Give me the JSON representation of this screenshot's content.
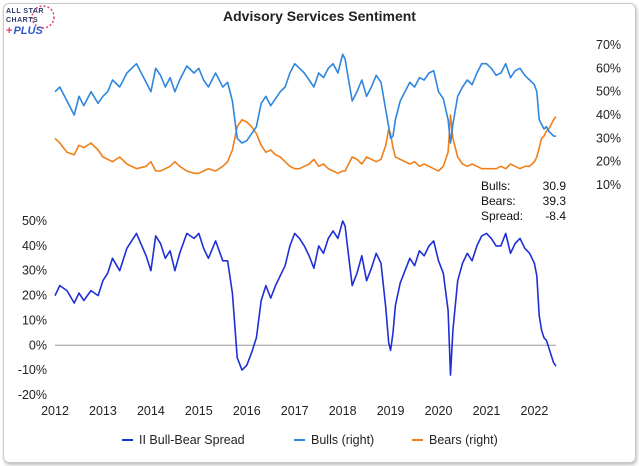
{
  "logo": {
    "line1": "ALL STAR",
    "line2": "CHARTS",
    "line3": "PLUS",
    "plus_glyph": "+"
  },
  "chart_data": {
    "type": "line",
    "title": "Advisory Services Sentiment",
    "x_ticks": [
      "2012",
      "2013",
      "2014",
      "2015",
      "2016",
      "2017",
      "2018",
      "2019",
      "2020",
      "2021",
      "2022"
    ],
    "x_range": [
      2012.0,
      2022.45
    ],
    "top_panel": {
      "axis_side": "right",
      "ylim": [
        10,
        70
      ],
      "y_ticks": [
        "70%",
        "60%",
        "50%",
        "40%",
        "30%",
        "20%",
        "10%"
      ],
      "y_tick_values": [
        70,
        60,
        50,
        40,
        30,
        20,
        10
      ],
      "series": [
        {
          "name": "Bulls (right)",
          "color": "#2e86de",
          "x": [
            2012.0,
            2012.1,
            2012.25,
            2012.4,
            2012.5,
            2012.6,
            2012.75,
            2012.9,
            2013.0,
            2013.1,
            2013.2,
            2013.35,
            2013.5,
            2013.7,
            2013.9,
            2014.0,
            2014.1,
            2014.2,
            2014.3,
            2014.4,
            2014.5,
            2014.6,
            2014.75,
            2014.9,
            2015.0,
            2015.1,
            2015.2,
            2015.35,
            2015.5,
            2015.6,
            2015.7,
            2015.75,
            2015.8,
            2015.9,
            2016.0,
            2016.1,
            2016.2,
            2016.3,
            2016.4,
            2016.5,
            2016.6,
            2016.7,
            2016.8,
            2016.9,
            2017.0,
            2017.1,
            2017.2,
            2017.3,
            2017.4,
            2017.5,
            2017.6,
            2017.7,
            2017.8,
            2017.9,
            2018.0,
            2018.05,
            2018.1,
            2018.2,
            2018.3,
            2018.4,
            2018.5,
            2018.6,
            2018.7,
            2018.8,
            2018.9,
            2018.96,
            2019.0,
            2019.05,
            2019.1,
            2019.2,
            2019.3,
            2019.4,
            2019.5,
            2019.6,
            2019.7,
            2019.8,
            2019.9,
            2020.0,
            2020.1,
            2020.2,
            2020.25,
            2020.3,
            2020.4,
            2020.5,
            2020.6,
            2020.7,
            2020.8,
            2020.9,
            2021.0,
            2021.1,
            2021.2,
            2021.3,
            2021.4,
            2021.5,
            2021.6,
            2021.7,
            2021.8,
            2021.9,
            2022.0,
            2022.05,
            2022.1,
            2022.15,
            2022.2,
            2022.25,
            2022.3,
            2022.35,
            2022.4,
            2022.45
          ],
          "y": [
            50,
            52,
            46,
            40,
            48,
            44,
            50,
            45,
            48,
            50,
            55,
            52,
            58,
            62,
            54,
            50,
            60,
            57,
            52,
            56,
            50,
            55,
            61,
            58,
            60,
            55,
            52,
            58,
            52,
            54,
            46,
            38,
            30,
            28,
            29,
            32,
            35,
            45,
            48,
            44,
            47,
            50,
            52,
            58,
            62,
            60,
            58,
            55,
            52,
            58,
            56,
            60,
            62,
            58,
            66,
            64,
            58,
            46,
            50,
            55,
            48,
            52,
            57,
            54,
            42,
            35,
            30,
            31,
            38,
            46,
            50,
            54,
            52,
            56,
            55,
            58,
            59,
            50,
            47,
            38,
            28,
            36,
            48,
            52,
            55,
            53,
            58,
            62,
            62,
            60,
            57,
            58,
            62,
            56,
            59,
            60,
            57,
            55,
            53,
            50,
            38,
            36,
            34,
            35,
            33,
            32,
            31,
            30.9
          ]
        },
        {
          "name": "Bears (right)",
          "color": "#f07f1a",
          "x": [
            2012.0,
            2012.1,
            2012.25,
            2012.4,
            2012.5,
            2012.6,
            2012.75,
            2012.9,
            2013.0,
            2013.1,
            2013.2,
            2013.35,
            2013.5,
            2013.7,
            2013.9,
            2014.0,
            2014.1,
            2014.2,
            2014.3,
            2014.4,
            2014.5,
            2014.6,
            2014.75,
            2014.9,
            2015.0,
            2015.1,
            2015.2,
            2015.35,
            2015.5,
            2015.6,
            2015.7,
            2015.75,
            2015.8,
            2015.9,
            2016.0,
            2016.1,
            2016.2,
            2016.3,
            2016.4,
            2016.5,
            2016.6,
            2016.7,
            2016.8,
            2016.9,
            2017.0,
            2017.1,
            2017.2,
            2017.3,
            2017.4,
            2017.5,
            2017.6,
            2017.7,
            2017.8,
            2017.9,
            2018.0,
            2018.05,
            2018.1,
            2018.2,
            2018.3,
            2018.4,
            2018.5,
            2018.6,
            2018.7,
            2018.8,
            2018.9,
            2018.96,
            2019.0,
            2019.05,
            2019.1,
            2019.2,
            2019.3,
            2019.4,
            2019.5,
            2019.6,
            2019.7,
            2019.8,
            2019.9,
            2020.0,
            2020.1,
            2020.2,
            2020.25,
            2020.3,
            2020.4,
            2020.5,
            2020.6,
            2020.7,
            2020.8,
            2020.9,
            2021.0,
            2021.1,
            2021.2,
            2021.3,
            2021.4,
            2021.5,
            2021.6,
            2021.7,
            2021.8,
            2021.9,
            2022.0,
            2022.05,
            2022.1,
            2022.15,
            2022.2,
            2022.25,
            2022.3,
            2022.35,
            2022.4,
            2022.45
          ],
          "y": [
            30,
            28,
            24,
            23,
            27,
            26,
            28,
            25,
            22,
            21,
            20,
            22,
            19,
            17,
            18,
            20,
            16,
            16,
            17,
            18,
            20,
            18,
            16,
            15,
            15,
            16,
            17,
            16,
            18,
            20,
            25,
            30,
            35,
            38,
            37,
            35,
            32,
            27,
            24,
            25,
            23,
            22,
            20,
            18,
            17,
            17,
            18,
            19,
            21,
            18,
            19,
            17,
            16,
            15,
            16,
            16,
            18,
            22,
            21,
            19,
            22,
            21,
            20,
            21,
            27,
            34,
            32,
            26,
            22,
            21,
            20,
            19,
            20,
            18,
            19,
            18,
            17,
            16,
            18,
            24,
            40,
            30,
            22,
            19,
            18,
            19,
            18,
            17,
            17,
            17,
            17,
            18,
            17,
            19,
            18,
            17,
            18,
            18,
            20,
            22,
            26,
            30,
            31,
            33,
            34,
            36,
            38,
            39.3
          ]
        }
      ]
    },
    "bottom_panel": {
      "axis_side": "left",
      "ylim": [
        -20,
        50
      ],
      "y_ticks": [
        "50%",
        "40%",
        "30%",
        "20%",
        "10%",
        "0%",
        "-10%",
        "-20%"
      ],
      "y_tick_values": [
        50,
        40,
        30,
        20,
        10,
        0,
        -10,
        -20
      ],
      "series": [
        {
          "name": "II Bull-Bear Spread",
          "color": "#1f2fd6",
          "x": [
            2012.0,
            2012.1,
            2012.25,
            2012.4,
            2012.5,
            2012.6,
            2012.75,
            2012.9,
            2013.0,
            2013.1,
            2013.2,
            2013.35,
            2013.5,
            2013.7,
            2013.9,
            2014.0,
            2014.1,
            2014.2,
            2014.3,
            2014.4,
            2014.5,
            2014.6,
            2014.75,
            2014.9,
            2015.0,
            2015.1,
            2015.2,
            2015.35,
            2015.5,
            2015.6,
            2015.7,
            2015.75,
            2015.8,
            2015.9,
            2016.0,
            2016.1,
            2016.2,
            2016.3,
            2016.4,
            2016.5,
            2016.6,
            2016.7,
            2016.8,
            2016.9,
            2017.0,
            2017.1,
            2017.2,
            2017.3,
            2017.4,
            2017.5,
            2017.6,
            2017.7,
            2017.8,
            2017.9,
            2018.0,
            2018.05,
            2018.1,
            2018.2,
            2018.3,
            2018.4,
            2018.5,
            2018.6,
            2018.7,
            2018.8,
            2018.9,
            2018.96,
            2019.0,
            2019.05,
            2019.1,
            2019.2,
            2019.3,
            2019.4,
            2019.5,
            2019.6,
            2019.7,
            2019.8,
            2019.9,
            2020.0,
            2020.1,
            2020.2,
            2020.25,
            2020.3,
            2020.4,
            2020.5,
            2020.6,
            2020.7,
            2020.8,
            2020.9,
            2021.0,
            2021.1,
            2021.2,
            2021.3,
            2021.4,
            2021.5,
            2021.6,
            2021.7,
            2021.8,
            2021.9,
            2022.0,
            2022.05,
            2022.1,
            2022.15,
            2022.2,
            2022.25,
            2022.3,
            2022.35,
            2022.4,
            2022.45
          ],
          "y": [
            20,
            24,
            22,
            17,
            21,
            18,
            22,
            20,
            26,
            29,
            35,
            30,
            39,
            45,
            36,
            30,
            44,
            41,
            35,
            38,
            30,
            37,
            45,
            43,
            45,
            39,
            35,
            42,
            34,
            34,
            21,
            8,
            -5,
            -10,
            -8,
            -3,
            3,
            18,
            24,
            19,
            24,
            28,
            32,
            40,
            45,
            43,
            40,
            36,
            31,
            40,
            37,
            43,
            46,
            43,
            50,
            48,
            40,
            24,
            29,
            36,
            26,
            31,
            37,
            33,
            15,
            1,
            -2,
            5,
            16,
            25,
            30,
            35,
            32,
            38,
            36,
            40,
            42,
            34,
            29,
            14,
            -12,
            6,
            26,
            33,
            37,
            34,
            40,
            44,
            45,
            43,
            40,
            40,
            45,
            37,
            41,
            43,
            39,
            37,
            33,
            28,
            12,
            6,
            3,
            2,
            -1,
            -4,
            -7,
            -8.4
          ]
        }
      ]
    },
    "stats": [
      {
        "label": "Bulls:",
        "value": "30.9"
      },
      {
        "label": "Bears:",
        "value": "39.3"
      },
      {
        "label": "Spread:",
        "value": "-8.4"
      }
    ],
    "legend": [
      "II Bull-Bear Spread",
      "Bulls (right)",
      "Bears (right)"
    ]
  },
  "colors": {
    "spread": "#1f2fd6",
    "bulls": "#2e86de",
    "bears": "#f07f1a",
    "axis": "#999999"
  }
}
